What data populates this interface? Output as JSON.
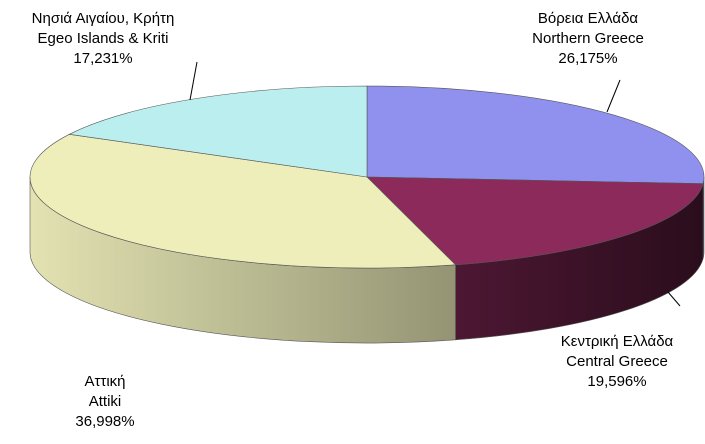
{
  "chart_data": {
    "type": "pie3d",
    "categories": [
      [
        "Βόρεια Ελλάδα",
        "Northern Greece"
      ],
      [
        "Κεντρική Ελλάδα",
        "Central Greece"
      ],
      [
        "Αττική",
        "Attiki"
      ],
      [
        "Νησιά Αιγαίου, Κρήτη",
        "Egeo Islands & Kriti"
      ]
    ],
    "values": [
      26.175,
      19.596,
      36.998,
      17.231
    ],
    "value_labels": [
      "26,175%",
      "19,596%",
      "36,998%",
      "17,231%"
    ],
    "colors": [
      "#9090ee",
      "#8c2a5c",
      "#eeeebb",
      "#bbeeee"
    ]
  }
}
